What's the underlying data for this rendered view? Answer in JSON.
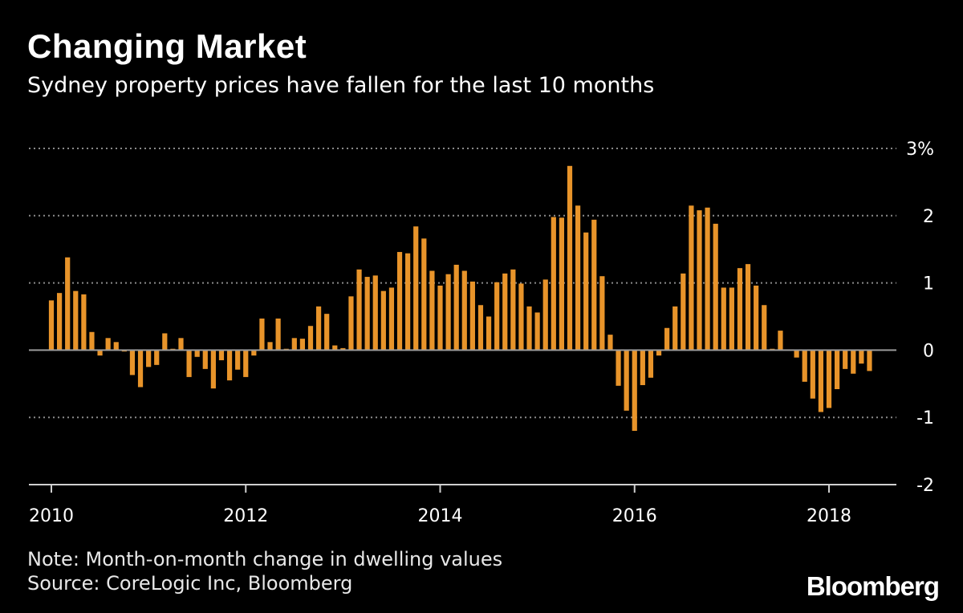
{
  "header": {
    "title": "Changing Market",
    "subtitle": "Sydney property prices have fallen for the last 10 months"
  },
  "footer": {
    "note": "Note: Month-on-month change in dwelling values",
    "source": "Source: CoreLogic Inc, Bloomberg",
    "logo": "Bloomberg"
  },
  "colors": {
    "background": "#000000",
    "bar": "#e8942a",
    "grid": "#8a8a8a",
    "text": "#ffffff"
  },
  "chart_data": {
    "type": "bar",
    "title": "Changing Market",
    "subtitle": "Sydney property prices have fallen for the last 10 months",
    "xlabel": "",
    "ylabel": "",
    "x_start": "2010-01",
    "x_end": "2018-06",
    "x_ticks": [
      "2010",
      "2012",
      "2014",
      "2016",
      "2018"
    ],
    "y_ticks": [
      {
        "value": 3,
        "label": "3%"
      },
      {
        "value": 2,
        "label": "2"
      },
      {
        "value": 1,
        "label": "1"
      },
      {
        "value": 0,
        "label": "0"
      },
      {
        "value": -1,
        "label": "-1"
      },
      {
        "value": -2,
        "label": "-2"
      }
    ],
    "ylim": [
      -2,
      3
    ],
    "grid": true,
    "series": [
      {
        "values": [
          0.74,
          0.85,
          1.38,
          0.88,
          0.83,
          0.27,
          -0.08,
          0.18,
          0.12,
          -0.02,
          -0.37,
          -0.55,
          -0.25,
          -0.22,
          0.25,
          0.02,
          0.18,
          -0.4,
          -0.1,
          -0.28,
          -0.57,
          -0.15,
          -0.45,
          -0.29,
          -0.4,
          -0.08,
          0.47,
          0.12,
          0.47,
          0.02,
          0.18,
          0.17,
          0.36,
          0.65,
          0.54,
          0.07,
          0.03,
          0.8,
          1.2,
          1.09,
          1.11,
          0.88,
          0.93,
          1.46,
          1.44,
          1.84,
          1.66,
          1.18,
          0.96,
          1.13,
          1.27,
          1.18,
          1.02,
          0.67,
          0.5,
          1.01,
          1.14,
          1.2,
          0.99,
          0.65,
          0.56,
          1.05,
          1.98,
          1.97,
          2.74,
          2.15,
          1.75,
          1.94,
          1.1,
          0.23,
          -0.53,
          -0.9,
          -1.2,
          -0.52,
          -0.41,
          -0.08,
          0.33,
          0.65,
          1.14,
          2.15,
          2.08,
          2.12,
          1.88,
          0.93,
          0.93,
          1.22,
          1.28,
          0.96,
          0.67,
          0.02,
          0.29,
          0.01,
          -0.11,
          -0.47,
          -0.72,
          -0.92,
          -0.86,
          -0.58,
          -0.28,
          -0.35,
          -0.2,
          -0.31
        ]
      }
    ]
  }
}
